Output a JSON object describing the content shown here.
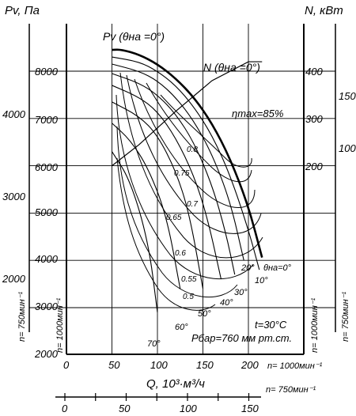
{
  "chart_data": {
    "type": "line",
    "title": "",
    "left_labels": {
      "pv_title": "Pv, Па",
      "pv_ticks_inner": [
        "8000",
        "7000",
        "6000",
        "5000",
        "4000",
        "3000",
        "2000"
      ],
      "pv_ticks_outer": [
        "4000",
        "3000",
        "2000"
      ],
      "rpm_inner": "n= 1000мин⁻¹",
      "rpm_outer": "n= 750мин⁻¹"
    },
    "right_labels": {
      "n_title": "N, кВт",
      "n_ticks_inner": [
        "400",
        "300",
        "200"
      ],
      "n_ticks_outer": [
        "150",
        "100"
      ],
      "rpm_inner": "n= 1000мин⁻¹",
      "rpm_outer": "n= 750мин⁻¹"
    },
    "bottom": {
      "x_ticks_inner": [
        "0",
        "50",
        "100",
        "150",
        "200"
      ],
      "x_rpm_inner": "n= 1000мин⁻¹",
      "x_label": "Q, 10³·м³/ч",
      "x_rpm_outer": "n= 750мин⁻¹",
      "x_ticks_outer": [
        "0",
        "50",
        "100",
        "150"
      ]
    },
    "y_range_pa_1000": [
      2000,
      8800
    ],
    "x_range_1000": [
      0,
      230
    ],
    "curve_labels": {
      "pv": "Pv (θна =0°)",
      "n": "N (θна =0°)",
      "eta_max": "ηmax=85%"
    },
    "angle_labels": [
      "0°",
      "10°",
      "20°",
      "30°",
      "40°",
      "50°",
      "60°",
      "70°"
    ],
    "angle_label_zero": "θна=0°",
    "efficiency_labels": [
      "0.8",
      "0.75",
      "0.7",
      "0.65",
      "0.6",
      "0.55",
      "0.5"
    ],
    "conditions": [
      "t=30°C",
      "Рбар=760 мм рт.ст."
    ],
    "series": [
      {
        "name": "0°",
        "x": [
          50,
          60,
          80,
          100,
          120,
          140,
          160,
          180,
          200,
          215
        ],
        "y": [
          8450,
          8460,
          8350,
          8150,
          7850,
          7450,
          6900,
          6150,
          5150,
          4060
        ]
      },
      {
        "name": "10°",
        "x": [
          50,
          80,
          100,
          120,
          140,
          160,
          180,
          200,
          212
        ],
        "y": [
          8300,
          8200,
          8000,
          7700,
          7250,
          6650,
          5800,
          4650,
          3800
        ]
      },
      {
        "name": "20°",
        "x": [
          50,
          80,
          100,
          120,
          140,
          160,
          180,
          195
        ],
        "y": [
          8150,
          8000,
          7800,
          7450,
          6950,
          6250,
          5250,
          4000
        ]
      },
      {
        "name": "30°",
        "x": [
          50,
          80,
          100,
          120,
          140,
          160,
          175,
          185
        ],
        "y": [
          7950,
          7750,
          7500,
          7100,
          6500,
          5600,
          4600,
          3700
        ]
      },
      {
        "name": "40°",
        "x": [
          50,
          80,
          100,
          120,
          140,
          155,
          170
        ],
        "y": [
          7700,
          7450,
          7150,
          6600,
          5800,
          4900,
          3600
        ]
      },
      {
        "name": "50°",
        "x": [
          50,
          80,
          100,
          120,
          135,
          150
        ],
        "y": [
          7350,
          7050,
          6650,
          5900,
          5000,
          3400
        ]
      },
      {
        "name": "60°",
        "x": [
          50,
          70,
          90,
          110,
          125
        ],
        "y": [
          6900,
          6550,
          5950,
          4950,
          3400
        ]
      },
      {
        "name": "70°",
        "x": [
          50,
          70,
          90,
          100
        ],
        "y": [
          6300,
          5700,
          4400,
          2900
        ]
      }
    ],
    "power_curve_0deg": {
      "x": [
        50,
        80,
        120,
        160,
        200,
        215
      ],
      "n_kw": [
        200,
        245,
        315,
        380,
        420,
        420
      ]
    },
    "n_axis_1000": {
      "ticks": [
        200,
        300,
        400
      ],
      "pa_equivalent": [
        6000,
        7000,
        8000
      ]
    }
  }
}
